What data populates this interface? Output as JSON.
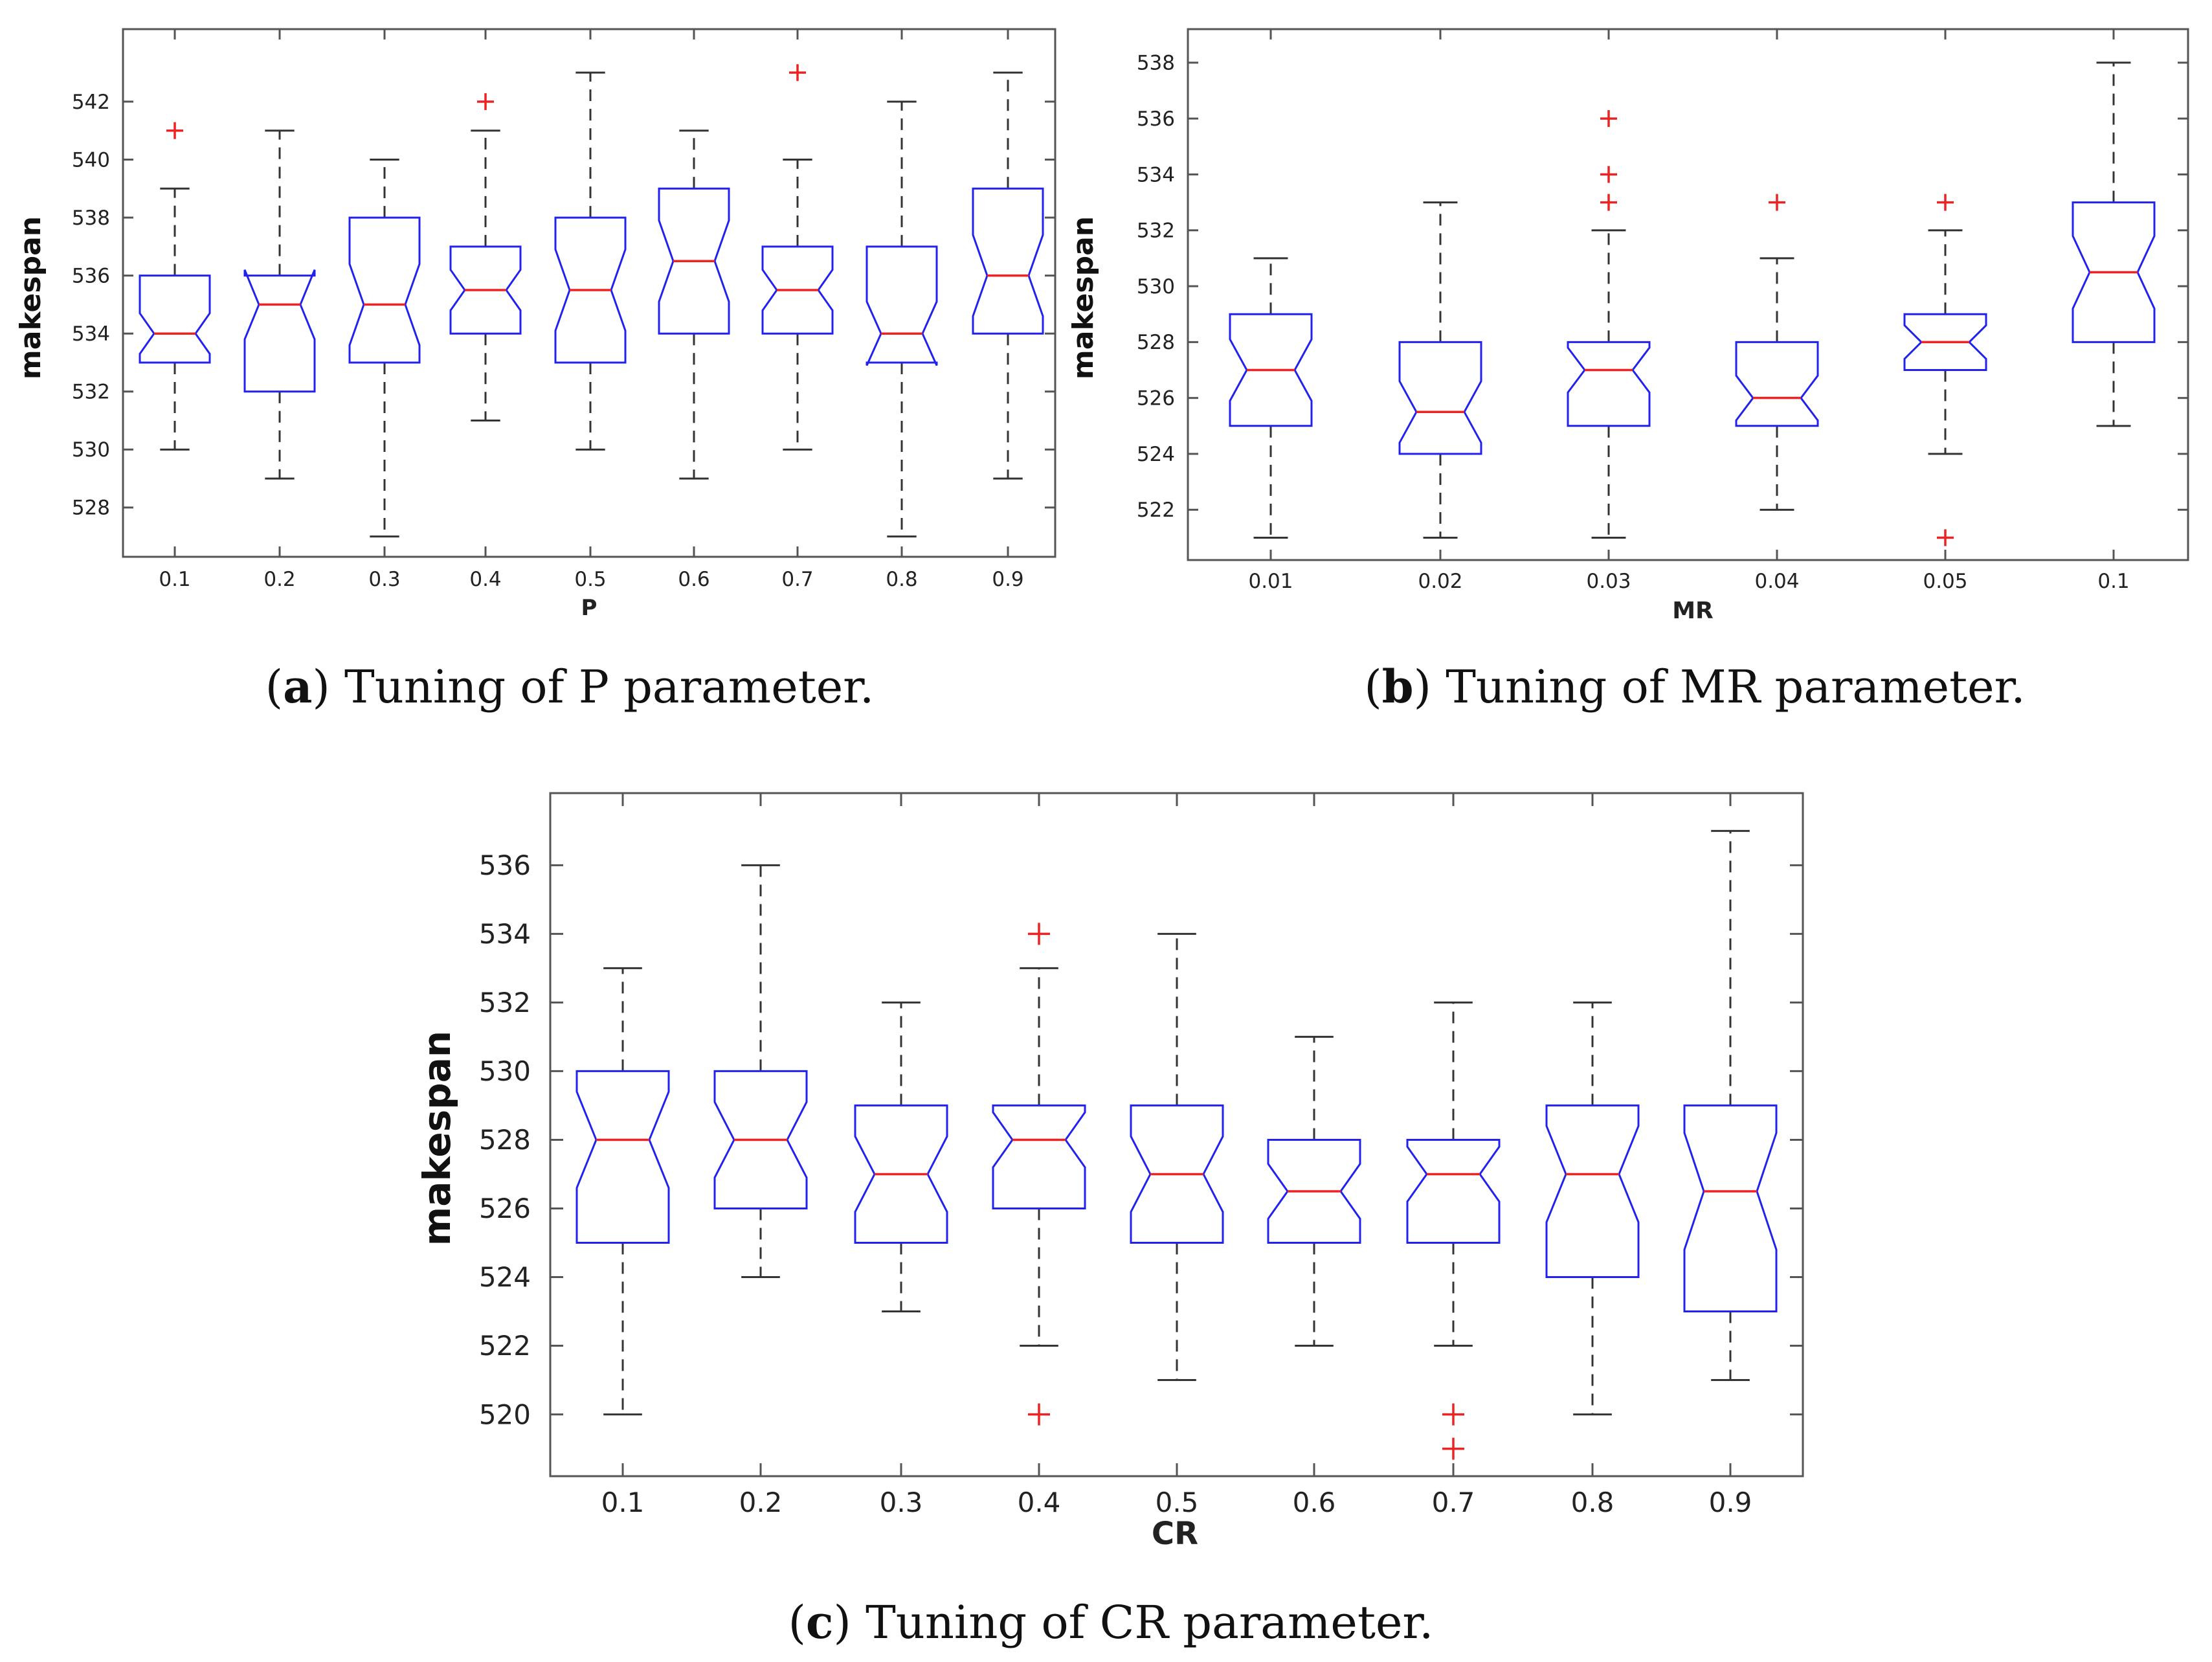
{
  "colors": {
    "box": "#2222ee",
    "median": "#ee2222",
    "whisker": "#333333",
    "outlier": "#ee2222",
    "frame": "#555555"
  },
  "chart_data": [
    {
      "id": "a",
      "type": "boxplot",
      "caption": {
        "letter": "a",
        "text": " Tuning of P parameter."
      },
      "xlabel": "P",
      "ylabel": "makespan",
      "ylim": [
        526.3,
        544.5
      ],
      "yticks": [
        528,
        530,
        532,
        534,
        536,
        538,
        540,
        542
      ],
      "categories": [
        "0.1",
        "0.2",
        "0.3",
        "0.4",
        "0.5",
        "0.6",
        "0.7",
        "0.8",
        "0.9"
      ],
      "boxes": [
        {
          "whislo": 530,
          "q1": 533,
          "med": 534,
          "q3": 536,
          "whishi": 539,
          "notch_lo": 533.3,
          "notch_hi": 534.7,
          "fliers": [
            541
          ]
        },
        {
          "whislo": 529,
          "q1": 532,
          "med": 535,
          "q3": 536,
          "whishi": 541,
          "notch_lo": 533.8,
          "notch_hi": 536.2,
          "fliers": []
        },
        {
          "whislo": 527,
          "q1": 533,
          "med": 535,
          "q3": 538,
          "whishi": 540,
          "notch_lo": 533.6,
          "notch_hi": 536.4,
          "fliers": []
        },
        {
          "whislo": 531,
          "q1": 534,
          "med": 535.5,
          "q3": 537,
          "whishi": 541,
          "notch_lo": 534.8,
          "notch_hi": 536.2,
          "fliers": [
            542
          ]
        },
        {
          "whislo": 530,
          "q1": 533,
          "med": 535.5,
          "q3": 538,
          "whishi": 543,
          "notch_lo": 534.1,
          "notch_hi": 536.9,
          "fliers": []
        },
        {
          "whislo": 529,
          "q1": 534,
          "med": 536.5,
          "q3": 539,
          "whishi": 541,
          "notch_lo": 535.1,
          "notch_hi": 537.9,
          "fliers": []
        },
        {
          "whislo": 530,
          "q1": 534,
          "med": 535.5,
          "q3": 537,
          "whishi": 540,
          "notch_lo": 534.8,
          "notch_hi": 536.2,
          "fliers": [
            543
          ]
        },
        {
          "whislo": 527,
          "q1": 533,
          "med": 534,
          "q3": 537,
          "whishi": 542,
          "notch_lo": 532.9,
          "notch_hi": 535.1,
          "fliers": []
        },
        {
          "whislo": 529,
          "q1": 534,
          "med": 536,
          "q3": 539,
          "whishi": 543,
          "notch_lo": 534.6,
          "notch_hi": 537.4,
          "fliers": []
        }
      ]
    },
    {
      "id": "b",
      "type": "boxplot",
      "caption": {
        "letter": "b",
        "text": " Tuning of MR parameter."
      },
      "xlabel": "MR",
      "ylabel": "makespan",
      "ylim": [
        520.2,
        539.2
      ],
      "yticks": [
        522,
        524,
        526,
        528,
        530,
        532,
        534,
        536,
        538
      ],
      "categories": [
        "0.01",
        "0.02",
        "0.03",
        "0.04",
        "0.05",
        "0.1"
      ],
      "boxes": [
        {
          "whislo": 521,
          "q1": 525,
          "med": 527,
          "q3": 529,
          "whishi": 531,
          "notch_lo": 525.9,
          "notch_hi": 528.1,
          "fliers": []
        },
        {
          "whislo": 521,
          "q1": 524,
          "med": 525.5,
          "q3": 528,
          "whishi": 533,
          "notch_lo": 524.4,
          "notch_hi": 526.6,
          "fliers": []
        },
        {
          "whislo": 521,
          "q1": 525,
          "med": 527,
          "q3": 528,
          "whishi": 532,
          "notch_lo": 526.2,
          "notch_hi": 527.8,
          "fliers": [
            533,
            534,
            536
          ]
        },
        {
          "whislo": 522,
          "q1": 525,
          "med": 526,
          "q3": 528,
          "whishi": 531,
          "notch_lo": 525.2,
          "notch_hi": 526.8,
          "fliers": [
            533
          ]
        },
        {
          "whislo": 524,
          "q1": 527,
          "med": 528,
          "q3": 529,
          "whishi": 532,
          "notch_lo": 527.4,
          "notch_hi": 528.6,
          "fliers": [
            533,
            521
          ]
        },
        {
          "whislo": 525,
          "q1": 528,
          "med": 530.5,
          "q3": 533,
          "whishi": 538,
          "notch_lo": 529.2,
          "notch_hi": 531.8,
          "fliers": []
        }
      ]
    },
    {
      "id": "c",
      "type": "boxplot",
      "caption": {
        "letter": "c",
        "text": " Tuning of CR parameter."
      },
      "xlabel": "CR",
      "ylabel": "makespan",
      "ylim": [
        518.2,
        538.1
      ],
      "yticks": [
        520,
        522,
        524,
        526,
        528,
        530,
        532,
        534,
        536
      ],
      "categories": [
        "0.1",
        "0.2",
        "0.3",
        "0.4",
        "0.5",
        "0.6",
        "0.7",
        "0.8",
        "0.9"
      ],
      "boxes": [
        {
          "whislo": 520,
          "q1": 525,
          "med": 528,
          "q3": 530,
          "whishi": 533,
          "notch_lo": 526.6,
          "notch_hi": 529.4,
          "fliers": []
        },
        {
          "whislo": 524,
          "q1": 526,
          "med": 528,
          "q3": 530,
          "whishi": 536,
          "notch_lo": 526.9,
          "notch_hi": 529.1,
          "fliers": []
        },
        {
          "whislo": 523,
          "q1": 525,
          "med": 527,
          "q3": 529,
          "whishi": 532,
          "notch_lo": 525.9,
          "notch_hi": 528.1,
          "fliers": []
        },
        {
          "whislo": 522,
          "q1": 526,
          "med": 528,
          "q3": 529,
          "whishi": 533,
          "notch_lo": 527.2,
          "notch_hi": 528.8,
          "fliers": [
            534,
            520
          ]
        },
        {
          "whislo": 521,
          "q1": 525,
          "med": 527,
          "q3": 529,
          "whishi": 534,
          "notch_lo": 525.9,
          "notch_hi": 528.1,
          "fliers": []
        },
        {
          "whislo": 522,
          "q1": 525,
          "med": 526.5,
          "q3": 528,
          "whishi": 531,
          "notch_lo": 525.7,
          "notch_hi": 527.3,
          "fliers": []
        },
        {
          "whislo": 522,
          "q1": 525,
          "med": 527,
          "q3": 528,
          "whishi": 532,
          "notch_lo": 526.2,
          "notch_hi": 527.8,
          "fliers": [
            520,
            519
          ]
        },
        {
          "whislo": 520,
          "q1": 524,
          "med": 527,
          "q3": 529,
          "whishi": 532,
          "notch_lo": 525.6,
          "notch_hi": 528.4,
          "fliers": []
        },
        {
          "whislo": 521,
          "q1": 523,
          "med": 526.5,
          "q3": 529,
          "whishi": 537,
          "notch_lo": 524.8,
          "notch_hi": 528.2,
          "fliers": []
        }
      ]
    }
  ]
}
